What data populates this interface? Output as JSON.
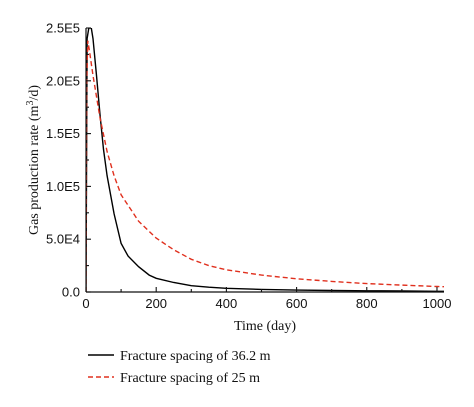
{
  "chart_data": {
    "type": "line",
    "xlabel": "Time (day)",
    "ylabel": "Gas production rate (m³/d)",
    "xlim": [
      0,
      1020
    ],
    "ylim": [
      0,
      250000
    ],
    "xticks": [
      0,
      200,
      400,
      600,
      800,
      1000
    ],
    "xtick_labels": [
      "0",
      "200",
      "400",
      "600",
      "800",
      "1000"
    ],
    "yticks": [
      0,
      50000,
      100000,
      150000,
      200000,
      250000
    ],
    "ytick_labels": [
      "0.0",
      "5.0E4",
      "1.0E5",
      "1.5E5",
      "2.0E5",
      "2.5E5"
    ],
    "legend_position": "below-left",
    "series": [
      {
        "name": "Fracture spacing of 36.2 m",
        "color": "#000000",
        "style": "solid",
        "x": [
          0,
          3,
          8,
          15,
          20,
          30,
          40,
          50,
          60,
          80,
          100,
          120,
          150,
          180,
          200,
          250,
          300,
          350,
          400,
          500,
          600,
          700,
          800,
          900,
          1000,
          1020
        ],
        "y": [
          0,
          240000,
          250000,
          250000,
          240000,
          205000,
          168000,
          135000,
          110000,
          74000,
          46000,
          34000,
          24000,
          16000,
          13000,
          9000,
          6000,
          4500,
          3500,
          2500,
          1800,
          1400,
          1100,
          900,
          700,
          650
        ]
      },
      {
        "name": "Fracture spacing of 25 m",
        "color": "#e0301e",
        "style": "dashed",
        "x": [
          0,
          2,
          5,
          10,
          20,
          30,
          40,
          60,
          80,
          100,
          150,
          200,
          250,
          300,
          350,
          400,
          500,
          600,
          700,
          800,
          900,
          1000,
          1020
        ],
        "y": [
          0,
          200000,
          238000,
          228000,
          205000,
          185000,
          165000,
          133000,
          110000,
          92000,
          67000,
          51000,
          40000,
          31000,
          25000,
          21000,
          16000,
          12500,
          10000,
          8000,
          6500,
          5200,
          5000
        ]
      }
    ]
  }
}
